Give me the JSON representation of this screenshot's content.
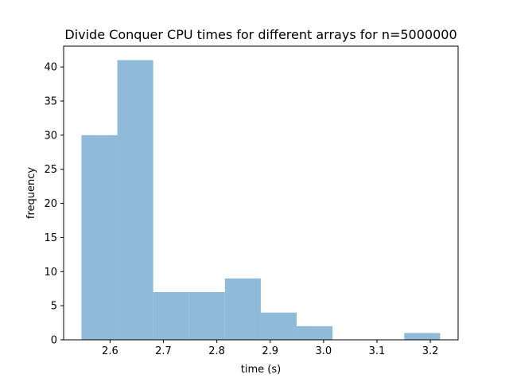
{
  "chart_data": {
    "type": "bar",
    "title": "Divide Conquer CPU times for different arrays for n=5000000",
    "xlabel": "time (s)",
    "ylabel": "frequency",
    "bin_edges": [
      2.5464,
      2.6136,
      2.6808,
      2.748,
      2.8152,
      2.8824,
      2.9496,
      3.0168,
      3.084,
      3.1512,
      3.2184
    ],
    "values": [
      30,
      41,
      7,
      7,
      9,
      4,
      2,
      0,
      0,
      1
    ],
    "xlim": [
      2.513,
      3.252
    ],
    "ylim": [
      0,
      43.05
    ],
    "xticks": [
      2.6,
      2.7,
      2.8,
      2.9,
      3.0,
      3.1,
      3.2
    ],
    "xtick_labels": [
      "2.6",
      "2.7",
      "2.8",
      "2.9",
      "3.0",
      "3.1",
      "3.2"
    ],
    "yticks": [
      0,
      5,
      10,
      15,
      20,
      25,
      30,
      35,
      40
    ],
    "ytick_labels": [
      "0",
      "5",
      "10",
      "15",
      "20",
      "25",
      "30",
      "35",
      "40"
    ],
    "grid": false,
    "bar_color": "#8fbbd9"
  }
}
